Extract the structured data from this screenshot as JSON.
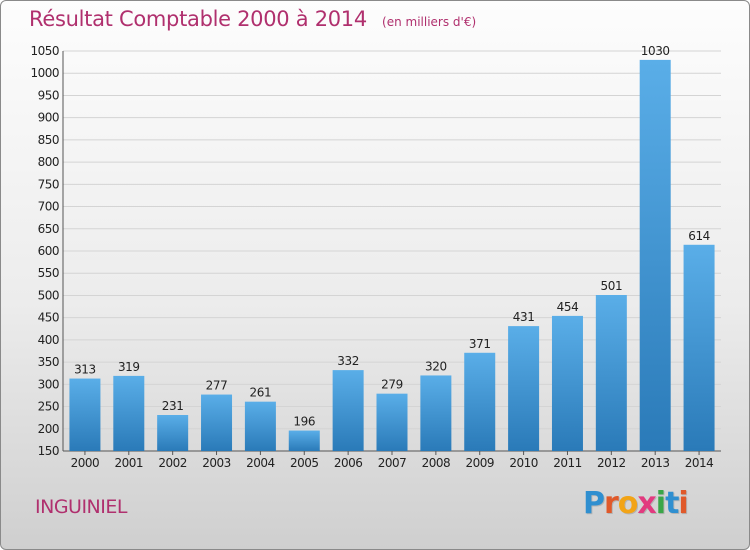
{
  "chart_data": {
    "type": "bar",
    "title": "Résultat Comptable 2000 à 2014",
    "subtitle": "(en milliers d'€)",
    "xlabel": "",
    "ylabel": "",
    "categories": [
      "2000",
      "2001",
      "2002",
      "2003",
      "2004",
      "2005",
      "2006",
      "2007",
      "2008",
      "2009",
      "2010",
      "2011",
      "2012",
      "2013",
      "2014"
    ],
    "values": [
      313,
      319,
      231,
      277,
      261,
      196,
      332,
      279,
      320,
      371,
      431,
      454,
      501,
      1030,
      614
    ],
    "ylim": [
      150,
      1050
    ],
    "yticks": [
      150,
      200,
      250,
      300,
      350,
      400,
      450,
      500,
      550,
      600,
      650,
      700,
      750,
      800,
      850,
      900,
      950,
      1000,
      1050
    ],
    "grid": true,
    "legend": "none",
    "bar_color_top": "#5aaee8",
    "bar_color_bottom": "#2a7ab8",
    "title_color": "#b0306e"
  },
  "footer": {
    "commune": "INGUINIEL"
  },
  "logo": {
    "letters": [
      {
        "char": "P",
        "color": "#2f8fd0"
      },
      {
        "char": "r",
        "color": "#e0592a"
      },
      {
        "char": "o",
        "color": "#f2a416"
      },
      {
        "char": "x",
        "color": "#e23a7f"
      },
      {
        "char": "i",
        "color": "#3aa648"
      },
      {
        "char": "t",
        "color": "#2f8fd0"
      },
      {
        "char": "i",
        "color": "#e0592a"
      }
    ]
  }
}
